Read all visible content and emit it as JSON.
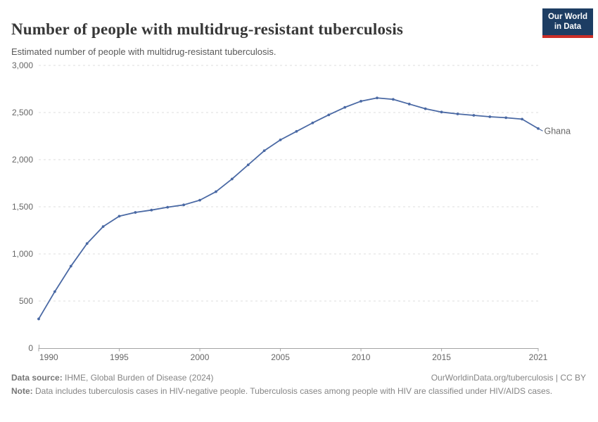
{
  "header": {
    "title": "Number of people with multidrug-resistant tuberculosis",
    "subtitle": "Estimated number of people with multidrug-resistant tuberculosis."
  },
  "logo": {
    "line1": "Our World",
    "line2": "in Data"
  },
  "chart_data": {
    "type": "line",
    "title": "Number of people with multidrug-resistant tuberculosis",
    "subtitle": "Estimated number of people with multidrug-resistant tuberculosis.",
    "xlabel": "",
    "ylabel": "",
    "xlim": [
      1990,
      2021
    ],
    "ylim": [
      0,
      3000
    ],
    "grid": "horizontal-dashed",
    "legend_position": "end-of-line-label",
    "xticks": [
      1990,
      1995,
      2000,
      2005,
      2010,
      2015,
      2021
    ],
    "xtick_labels": [
      "1990",
      "1995",
      "2000",
      "2005",
      "2010",
      "2015",
      "2021"
    ],
    "yticks": [
      0,
      500,
      1000,
      1500,
      2000,
      2500,
      3000
    ],
    "ytick_labels": [
      "0",
      "500",
      "1,000",
      "1,500",
      "2,000",
      "2,500",
      "3,000"
    ],
    "series": [
      {
        "name": "Ghana",
        "color": "#4a69a4",
        "x": [
          1990,
          1991,
          1992,
          1993,
          1994,
          1995,
          1996,
          1997,
          1998,
          1999,
          2000,
          2001,
          2002,
          2003,
          2004,
          2005,
          2006,
          2007,
          2008,
          2009,
          2010,
          2011,
          2012,
          2013,
          2014,
          2015,
          2016,
          2017,
          2018,
          2019,
          2020,
          2021
        ],
        "values": [
          310,
          600,
          870,
          1110,
          1290,
          1400,
          1440,
          1465,
          1495,
          1520,
          1570,
          1660,
          1795,
          1945,
          2095,
          2210,
          2300,
          2390,
          2475,
          2555,
          2620,
          2655,
          2640,
          2590,
          2540,
          2505,
          2485,
          2470,
          2455,
          2445,
          2430,
          2330
        ]
      }
    ]
  },
  "colors": {
    "line": "#4a69a4",
    "grid": "#dcdcdc",
    "axis": "#a3a3a3",
    "tick_text": "#666666",
    "logo_bg": "#1d3d63",
    "logo_red": "#cb2e27"
  },
  "footer": {
    "datasource_label": "Data source:",
    "datasource_text": " IHME, Global Burden of Disease (2024)",
    "license": "OurWorldinData.org/tuberculosis | CC BY",
    "note_label": "Note:",
    "note_text": " Data includes tuberculosis cases in HIV-negative people. Tuberculosis cases among people with HIV are classified under HIV/AIDS cases."
  }
}
